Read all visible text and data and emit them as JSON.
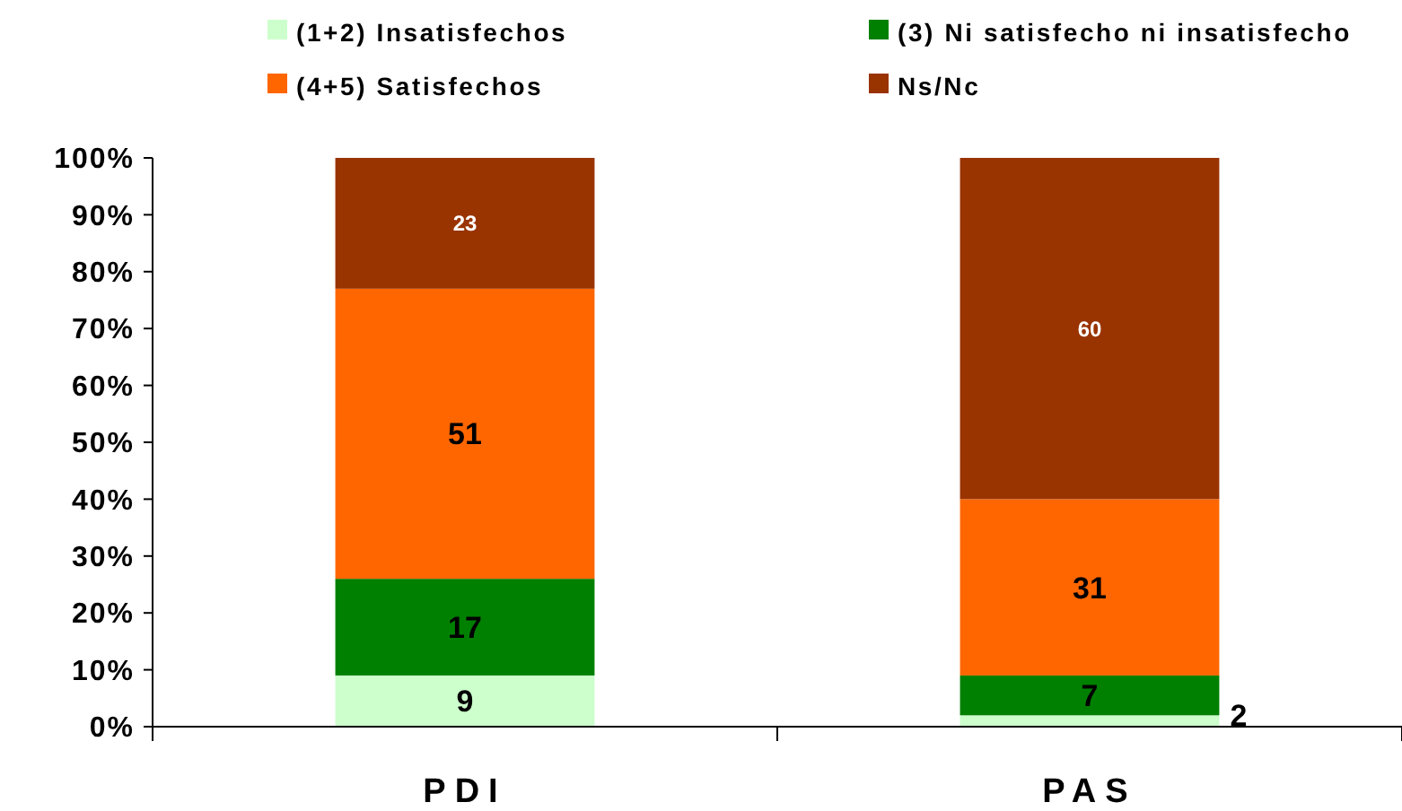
{
  "chart_data": {
    "type": "bar",
    "stacked": true,
    "categories": [
      "PDI",
      "PAS"
    ],
    "series": [
      {
        "name": "(1+2) Insatisfechos",
        "color": "#ccffcc",
        "values": [
          9,
          2
        ]
      },
      {
        "name": "(3) Ni satisfecho ni insatisfecho",
        "color": "#008000",
        "values": [
          17,
          7
        ]
      },
      {
        "name": "(4+5) Satisfechos",
        "color": "#ff6600",
        "values": [
          51,
          31
        ]
      },
      {
        "name": "Ns/Nc",
        "color": "#993300",
        "values": [
          23,
          60
        ]
      }
    ],
    "ylim": [
      0,
      100
    ],
    "yticks": [
      {
        "value": 0,
        "label": "0%"
      },
      {
        "value": 10,
        "label": "10%"
      },
      {
        "value": 20,
        "label": "20%"
      },
      {
        "value": 30,
        "label": "30%"
      },
      {
        "value": 40,
        "label": "40%"
      },
      {
        "value": 50,
        "label": "50%"
      },
      {
        "value": 60,
        "label": "60%"
      },
      {
        "value": 70,
        "label": "70%"
      },
      {
        "value": 80,
        "label": "80%"
      },
      {
        "value": 90,
        "label": "90%"
      },
      {
        "value": 100,
        "label": "100%"
      }
    ],
    "data_labels": true,
    "legend": "top",
    "grid": false
  }
}
